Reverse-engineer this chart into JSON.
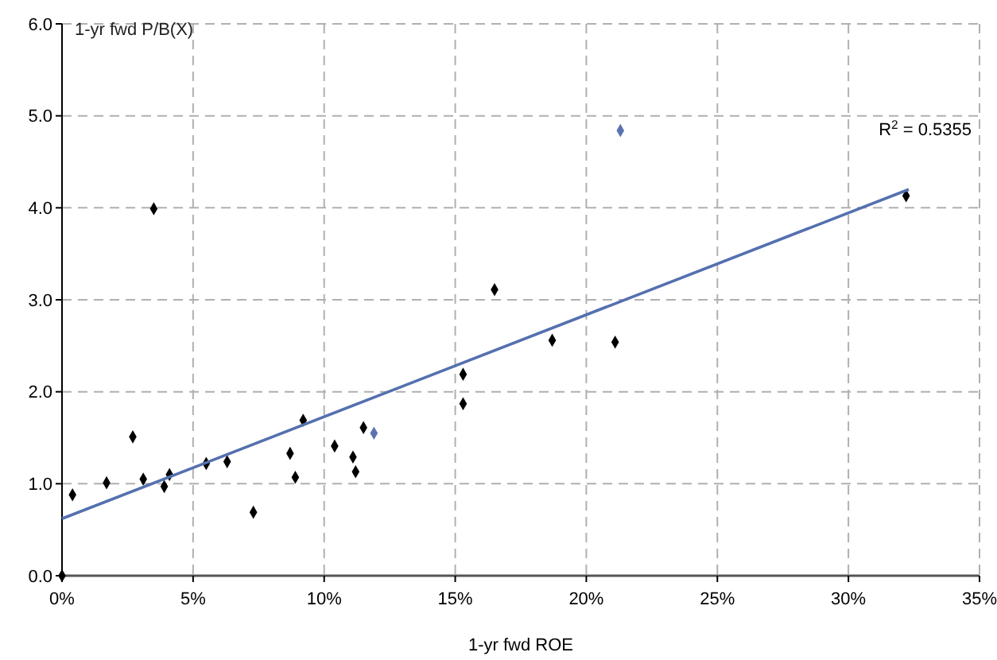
{
  "chart_data": {
    "type": "scatter",
    "xlabel": "1-yr fwd ROE",
    "ylabel": "1-yr fwd P/B(X)",
    "annotations": [
      "R$^{2}$ = 0.5355"
    ],
    "xlim": [
      0,
      35
    ],
    "xticks": [
      {
        "value": 0,
        "label": "0%"
      },
      {
        "value": 5,
        "label": "5%"
      },
      {
        "value": 10,
        "label": "10%"
      },
      {
        "value": 15,
        "label": "15%"
      },
      {
        "value": 20,
        "label": "20%"
      },
      {
        "value": 25,
        "label": "25%"
      },
      {
        "value": 30,
        "label": "30%"
      },
      {
        "value": 35,
        "label": "35%"
      }
    ],
    "ylim": [
      0,
      6
    ],
    "yticks": [
      {
        "value": 0,
        "label": "0.0"
      },
      {
        "value": 1,
        "label": "1.0"
      },
      {
        "value": 2,
        "label": "2.0"
      },
      {
        "value": 3,
        "label": "3.0"
      },
      {
        "value": 4,
        "label": "4.0"
      },
      {
        "value": 5,
        "label": "5.0"
      },
      {
        "value": 6,
        "label": "6.0"
      }
    ],
    "grid": true,
    "marker": "diamond",
    "series": [
      {
        "color": "#000000",
        "x": [
          0,
          0.4,
          1.7,
          2.7,
          3.1,
          3.5,
          3.9,
          4.1,
          5.5,
          6.3,
          7.3,
          8.7,
          8.9,
          9.2,
          10.4,
          11.1,
          11.2,
          11.5,
          15.3,
          15.3,
          16.5,
          18.7,
          21.1,
          32.2
        ],
        "values": [
          0,
          0.88,
          1.01,
          1.51,
          1.05,
          3.99,
          0.97,
          1.1,
          1.22,
          1.24,
          0.69,
          1.33,
          1.07,
          1.69,
          1.41,
          1.29,
          1.13,
          1.61,
          2.19,
          1.87,
          3.11,
          2.56,
          2.54,
          4.13
        ]
      },
      {
        "color": "#5b74b0",
        "x": [
          11.9,
          21.3
        ],
        "values": [
          1.55,
          4.84
        ]
      },
      {
        "type": "line",
        "color": "#5470b0",
        "marker": "none",
        "x": [
          0,
          32.3
        ],
        "values": [
          0.62,
          4.2
        ]
      }
    ]
  }
}
